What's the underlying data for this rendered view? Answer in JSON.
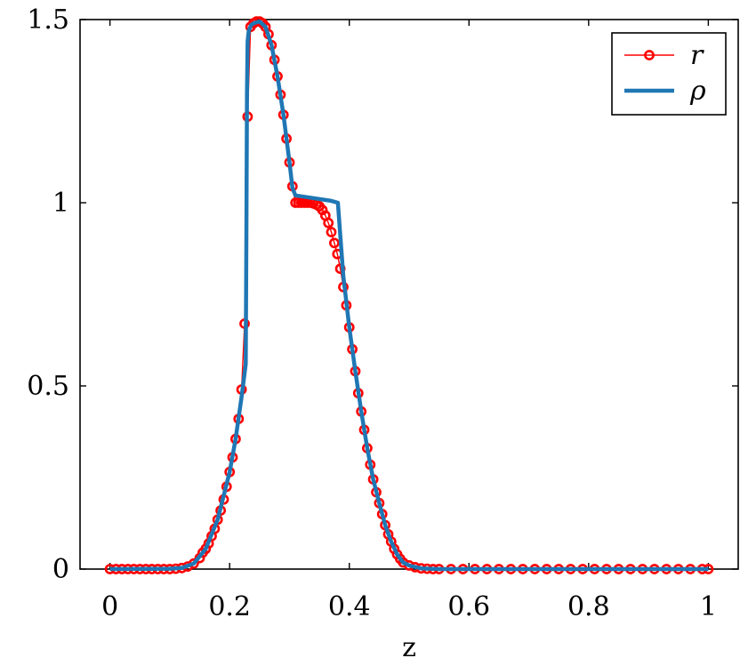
{
  "chart_data": {
    "type": "line",
    "xlabel": "z",
    "ylabel": "",
    "xlim": [
      -0.05,
      1.05
    ],
    "ylim": [
      0,
      1.5
    ],
    "x_ticks": [
      0,
      0.2,
      0.4,
      0.6,
      0.8,
      1
    ],
    "x_tick_labels": [
      "0",
      "0.2",
      "0.4",
      "0.6",
      "0.8",
      "1"
    ],
    "y_ticks": [
      0,
      0.5,
      1,
      1.5
    ],
    "y_tick_labels": [
      "0",
      "0.5",
      "1",
      "1.5"
    ],
    "grid": false,
    "legend_position": "top-right",
    "series": [
      {
        "name": "r",
        "style": "line-with-circle-markers",
        "color": "#ff0000",
        "points": [
          [
            0.0,
            0.0
          ],
          [
            0.01,
            0.0
          ],
          [
            0.02,
            0.0
          ],
          [
            0.03,
            0.0
          ],
          [
            0.04,
            0.0
          ],
          [
            0.05,
            0.0
          ],
          [
            0.06,
            0.0
          ],
          [
            0.07,
            0.0
          ],
          [
            0.08,
            0.0
          ],
          [
            0.09,
            0.0
          ],
          [
            0.1,
            0.0
          ],
          [
            0.11,
            0.001
          ],
          [
            0.12,
            0.003
          ],
          [
            0.13,
            0.007
          ],
          [
            0.14,
            0.015
          ],
          [
            0.15,
            0.03
          ],
          [
            0.155,
            0.045
          ],
          [
            0.16,
            0.055
          ],
          [
            0.165,
            0.07
          ],
          [
            0.17,
            0.09
          ],
          [
            0.175,
            0.11
          ],
          [
            0.18,
            0.135
          ],
          [
            0.185,
            0.16
          ],
          [
            0.19,
            0.19
          ],
          [
            0.195,
            0.225
          ],
          [
            0.2,
            0.265
          ],
          [
            0.205,
            0.305
          ],
          [
            0.21,
            0.355
          ],
          [
            0.215,
            0.41
          ],
          [
            0.22,
            0.49
          ],
          [
            0.225,
            0.67
          ],
          [
            0.23,
            1.235
          ],
          [
            0.235,
            1.48
          ],
          [
            0.24,
            1.49
          ],
          [
            0.245,
            1.495
          ],
          [
            0.25,
            1.495
          ],
          [
            0.255,
            1.49
          ],
          [
            0.26,
            1.48
          ],
          [
            0.265,
            1.46
          ],
          [
            0.27,
            1.43
          ],
          [
            0.275,
            1.39
          ],
          [
            0.28,
            1.345
          ],
          [
            0.285,
            1.295
          ],
          [
            0.29,
            1.24
          ],
          [
            0.295,
            1.175
          ],
          [
            0.3,
            1.11
          ],
          [
            0.305,
            1.045
          ],
          [
            0.31,
            1.0
          ],
          [
            0.315,
            1.0
          ],
          [
            0.32,
            1.0
          ],
          [
            0.325,
            1.0
          ],
          [
            0.33,
            1.0
          ],
          [
            0.335,
            1.0
          ],
          [
            0.34,
            0.998
          ],
          [
            0.345,
            0.995
          ],
          [
            0.35,
            0.99
          ],
          [
            0.355,
            0.98
          ],
          [
            0.36,
            0.965
          ],
          [
            0.365,
            0.945
          ],
          [
            0.37,
            0.92
          ],
          [
            0.375,
            0.89
          ],
          [
            0.38,
            0.86
          ],
          [
            0.385,
            0.82
          ],
          [
            0.39,
            0.77
          ],
          [
            0.395,
            0.72
          ],
          [
            0.4,
            0.66
          ],
          [
            0.405,
            0.6
          ],
          [
            0.41,
            0.54
          ],
          [
            0.415,
            0.48
          ],
          [
            0.42,
            0.43
          ],
          [
            0.425,
            0.38
          ],
          [
            0.43,
            0.33
          ],
          [
            0.435,
            0.285
          ],
          [
            0.44,
            0.245
          ],
          [
            0.445,
            0.21
          ],
          [
            0.45,
            0.18
          ],
          [
            0.455,
            0.15
          ],
          [
            0.46,
            0.12
          ],
          [
            0.465,
            0.095
          ],
          [
            0.47,
            0.075
          ],
          [
            0.475,
            0.055
          ],
          [
            0.48,
            0.04
          ],
          [
            0.485,
            0.028
          ],
          [
            0.49,
            0.018
          ],
          [
            0.5,
            0.01
          ],
          [
            0.51,
            0.005
          ],
          [
            0.52,
            0.002
          ],
          [
            0.53,
            0.001
          ],
          [
            0.54,
            0.0
          ],
          [
            0.55,
            0.0
          ],
          [
            0.57,
            0.0
          ],
          [
            0.59,
            0.0
          ],
          [
            0.61,
            0.0
          ],
          [
            0.63,
            0.0
          ],
          [
            0.65,
            0.0
          ],
          [
            0.67,
            0.0
          ],
          [
            0.69,
            0.0
          ],
          [
            0.71,
            0.0
          ],
          [
            0.73,
            0.0
          ],
          [
            0.75,
            0.0
          ],
          [
            0.77,
            0.0
          ],
          [
            0.79,
            0.0
          ],
          [
            0.81,
            0.0
          ],
          [
            0.83,
            0.0
          ],
          [
            0.85,
            0.0
          ],
          [
            0.87,
            0.0
          ],
          [
            0.89,
            0.0
          ],
          [
            0.91,
            0.0
          ],
          [
            0.93,
            0.0
          ],
          [
            0.95,
            0.0
          ],
          [
            0.97,
            0.0
          ],
          [
            0.99,
            0.0
          ],
          [
            1.0,
            0.0
          ]
        ]
      },
      {
        "name": "ρ",
        "style": "line",
        "color": "#1f77b4",
        "points": [
          [
            0.0,
            0.0
          ],
          [
            0.1,
            0.001
          ],
          [
            0.12,
            0.003
          ],
          [
            0.14,
            0.015
          ],
          [
            0.16,
            0.055
          ],
          [
            0.18,
            0.135
          ],
          [
            0.2,
            0.265
          ],
          [
            0.21,
            0.355
          ],
          [
            0.22,
            0.47
          ],
          [
            0.227,
            0.56
          ],
          [
            0.228,
            0.9
          ],
          [
            0.229,
            1.3
          ],
          [
            0.23,
            1.44
          ],
          [
            0.232,
            1.47
          ],
          [
            0.236,
            1.485
          ],
          [
            0.24,
            1.49
          ],
          [
            0.25,
            1.495
          ],
          [
            0.26,
            1.48
          ],
          [
            0.27,
            1.43
          ],
          [
            0.28,
            1.345
          ],
          [
            0.29,
            1.24
          ],
          [
            0.3,
            1.11
          ],
          [
            0.305,
            1.04
          ],
          [
            0.31,
            1.02
          ],
          [
            0.33,
            1.015
          ],
          [
            0.35,
            1.01
          ],
          [
            0.37,
            1.005
          ],
          [
            0.381,
            1.0
          ],
          [
            0.385,
            0.91
          ],
          [
            0.39,
            0.8
          ],
          [
            0.4,
            0.66
          ],
          [
            0.41,
            0.54
          ],
          [
            0.42,
            0.43
          ],
          [
            0.43,
            0.33
          ],
          [
            0.44,
            0.245
          ],
          [
            0.45,
            0.18
          ],
          [
            0.46,
            0.12
          ],
          [
            0.47,
            0.075
          ],
          [
            0.48,
            0.04
          ],
          [
            0.49,
            0.018
          ],
          [
            0.5,
            0.01
          ],
          [
            0.52,
            0.002
          ],
          [
            0.55,
            0.0
          ],
          [
            1.0,
            0.0
          ]
        ]
      }
    ]
  }
}
